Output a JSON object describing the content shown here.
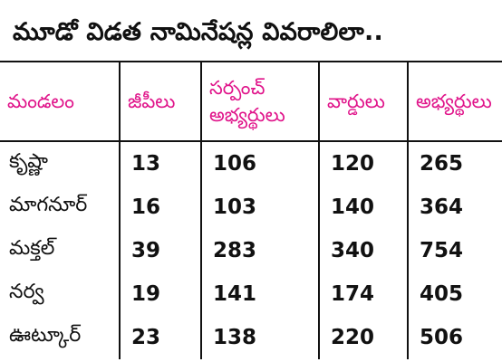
{
  "title": "మూడో విడత నామినేషన్ల వివరాలిలా..",
  "colors": {
    "header_text": "#e0148a",
    "body_text": "#111111",
    "rules": "#111111"
  },
  "table": {
    "headers": {
      "mandal": "మండలం",
      "gp": "జీపీలు",
      "sarpanch": "సర్పంచ్ అభ్యర్థులు",
      "wards": "వార్డులు",
      "candidates": "అభ్యర్థులు"
    },
    "rows": [
      {
        "mandal": "కృష్ణా",
        "gp": "13",
        "sarpanch": "106",
        "wards": "120",
        "candidates": "265"
      },
      {
        "mandal": "మాగనూర్",
        "gp": "16",
        "sarpanch": "103",
        "wards": "140",
        "candidates": "364"
      },
      {
        "mandal": "మక్తల్",
        "gp": "39",
        "sarpanch": "283",
        "wards": "340",
        "candidates": "754"
      },
      {
        "mandal": "నర్వ",
        "gp": "19",
        "sarpanch": "141",
        "wards": "174",
        "candidates": "405"
      },
      {
        "mandal": "ఊట్కూర్",
        "gp": "23",
        "sarpanch": "138",
        "wards": "220",
        "candidates": "506"
      }
    ]
  }
}
